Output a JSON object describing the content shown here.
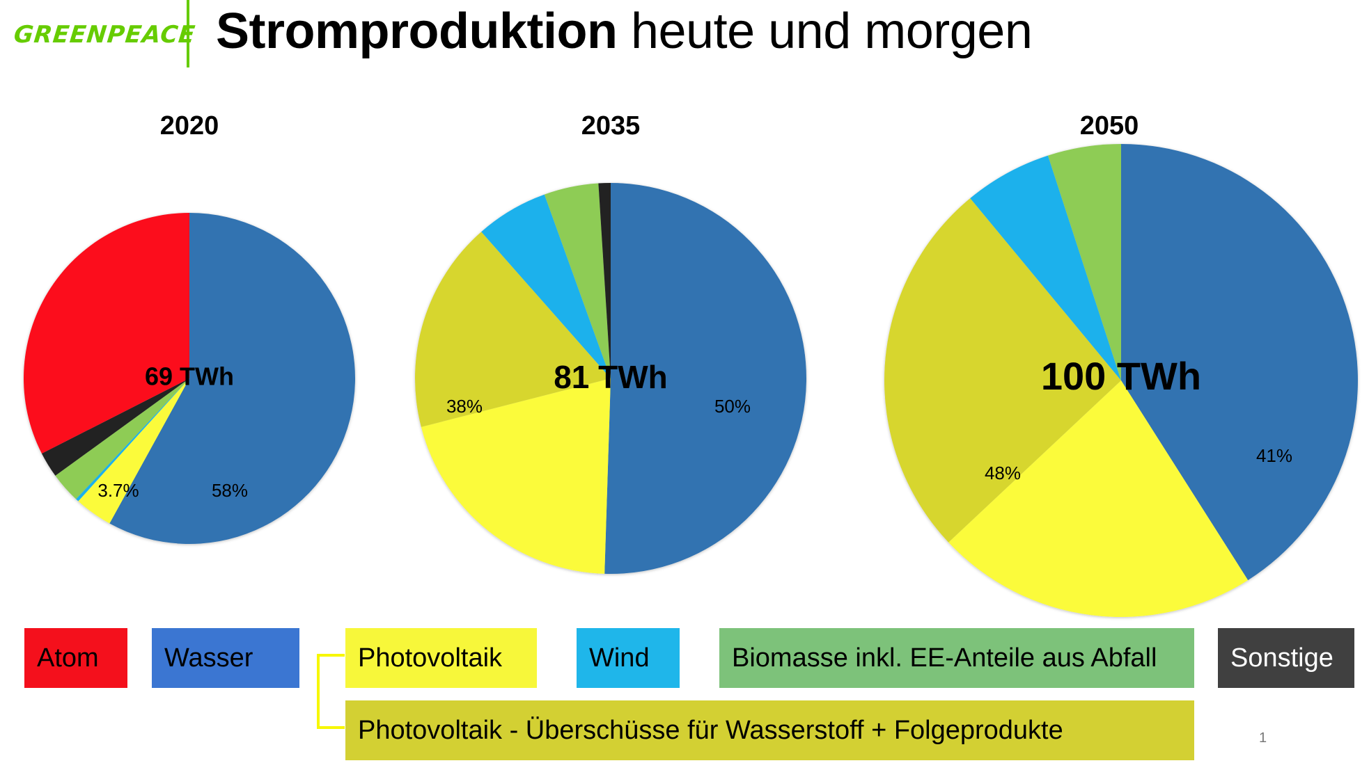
{
  "header": {
    "logo_text": "GREENPEACE",
    "title_bold": "Stromproduktion",
    "title_rest": " heute und morgen"
  },
  "colors": {
    "atom": "#fc0c1c",
    "wasser": "#3173b1",
    "photovoltaik": "#fbfb3a",
    "pv_surplus": "#d7d62f",
    "wind": "#1fb1ec",
    "biomasse": "#8ecc55",
    "sonstige": "#222222",
    "legend_atom": "#f4101c",
    "legend_wasser": "#3b76d2",
    "legend_pv": "#f7f73a",
    "legend_wind": "#1fb6ea",
    "legend_bio": "#7dc27a",
    "legend_sonstige": "#404040",
    "legend_pv_surplus": "#d3d033",
    "brand_green": "#66cc00"
  },
  "chart_data": [
    {
      "type": "pie",
      "title": "2020",
      "center_label": "69 TWh",
      "slices": [
        {
          "name": "Wasser",
          "value": 58,
          "label": "58%"
        },
        {
          "name": "Photovoltaik",
          "value": 3.7,
          "label": "3.7%"
        },
        {
          "name": "Wind",
          "value": 0.3,
          "label": ""
        },
        {
          "name": "Biomasse inkl. EE-Anteile aus Abfall",
          "value": 3,
          "label": ""
        },
        {
          "name": "Sonstige",
          "value": 2.5,
          "label": ""
        },
        {
          "name": "Atom",
          "value": 32.5,
          "label": ""
        }
      ]
    },
    {
      "type": "pie",
      "title": "2035",
      "center_label": "81 TWh",
      "slices": [
        {
          "name": "Wasser",
          "value": 50.5,
          "label": "50%"
        },
        {
          "name": "Photovoltaik",
          "value": 20.5,
          "label": ""
        },
        {
          "name": "Photovoltaik - Überschüsse für Wasserstoff + Folgeprodukte",
          "value": 17.5,
          "label": "38%"
        },
        {
          "name": "Wind",
          "value": 6,
          "label": ""
        },
        {
          "name": "Biomasse inkl. EE-Anteile aus Abfall",
          "value": 4.5,
          "label": ""
        },
        {
          "name": "Sonstige",
          "value": 1,
          "label": ""
        }
      ]
    },
    {
      "type": "pie",
      "title": "2050",
      "center_label": "100 TWh",
      "slices": [
        {
          "name": "Wasser",
          "value": 41,
          "label": "41%"
        },
        {
          "name": "Photovoltaik",
          "value": 22,
          "label": ""
        },
        {
          "name": "Photovoltaik - Überschüsse für Wasserstoff + Folgeprodukte",
          "value": 26,
          "label": "48%"
        },
        {
          "name": "Wind",
          "value": 6,
          "label": ""
        },
        {
          "name": "Biomasse inkl. EE-Anteile aus Abfall",
          "value": 5,
          "label": ""
        }
      ]
    }
  ],
  "legend": [
    {
      "key": "atom",
      "label": "Atom"
    },
    {
      "key": "wasser",
      "label": "Wasser"
    },
    {
      "key": "pv",
      "label": "Photovoltaik"
    },
    {
      "key": "wind",
      "label": "Wind"
    },
    {
      "key": "bio",
      "label": "Biomasse inkl. EE-Anteile aus Abfall"
    },
    {
      "key": "sonstige",
      "label": "Sonstige"
    },
    {
      "key": "pv_surplus",
      "label": "Photovoltaik - Überschüsse für Wasserstoff + Folgeprodukte"
    }
  ],
  "page_number": "1"
}
